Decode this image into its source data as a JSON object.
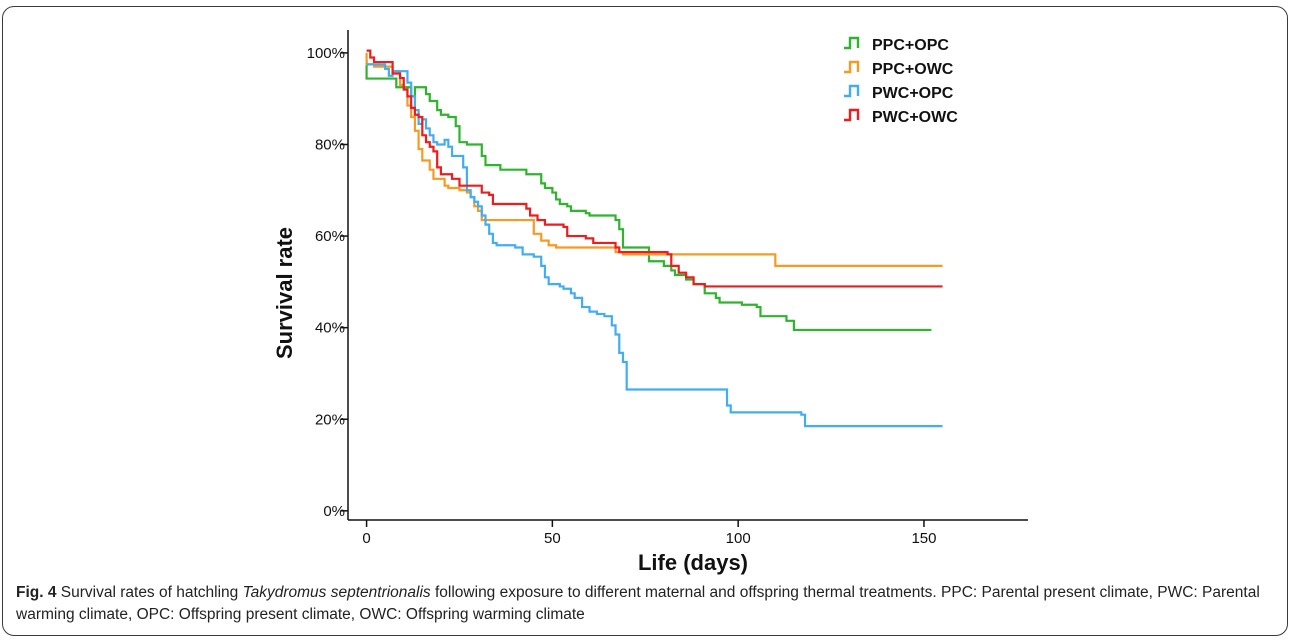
{
  "chart_data": {
    "type": "line",
    "step": true,
    "xlabel": "Life (days)",
    "ylabel": "Survival rate",
    "xlim": [
      -5,
      178
    ],
    "ylim": [
      -0.02,
      1.05
    ],
    "x_ticks": [
      0,
      50,
      100,
      150
    ],
    "x_tick_labels": [
      "0",
      "50",
      "100",
      "150"
    ],
    "y_ticks": [
      0,
      0.2,
      0.4,
      0.6,
      0.8,
      1.0
    ],
    "y_tick_labels": [
      "0%",
      "20%",
      "40%",
      "60%",
      "80%",
      "100%"
    ],
    "grid": false,
    "legend_position": "top-right",
    "series": [
      {
        "name": "PPC+OPC",
        "color": "#2db52d",
        "points": [
          [
            0,
            0.985
          ],
          [
            0,
            0.944
          ],
          [
            6,
            0.944
          ],
          [
            8,
            0.925
          ],
          [
            11,
            0.925
          ],
          [
            12,
            0.905
          ],
          [
            13,
            0.925
          ],
          [
            15,
            0.925
          ],
          [
            16,
            0.91
          ],
          [
            17,
            0.895
          ],
          [
            18,
            0.895
          ],
          [
            19,
            0.875
          ],
          [
            20,
            0.865
          ],
          [
            22,
            0.86
          ],
          [
            24,
            0.84
          ],
          [
            25,
            0.805
          ],
          [
            27,
            0.8
          ],
          [
            30,
            0.8
          ],
          [
            31,
            0.775
          ],
          [
            32,
            0.755
          ],
          [
            35,
            0.755
          ],
          [
            36,
            0.745
          ],
          [
            42,
            0.745
          ],
          [
            43,
            0.735
          ],
          [
            46,
            0.735
          ],
          [
            47,
            0.715
          ],
          [
            48,
            0.705
          ],
          [
            50,
            0.695
          ],
          [
            51,
            0.68
          ],
          [
            52,
            0.67
          ],
          [
            54,
            0.665
          ],
          [
            55,
            0.655
          ],
          [
            59,
            0.65
          ],
          [
            60,
            0.645
          ],
          [
            66,
            0.645
          ],
          [
            67,
            0.635
          ],
          [
            68,
            0.615
          ],
          [
            69,
            0.575
          ],
          [
            75,
            0.575
          ],
          [
            76,
            0.545
          ],
          [
            80,
            0.535
          ],
          [
            82,
            0.525
          ],
          [
            83,
            0.515
          ],
          [
            86,
            0.505
          ],
          [
            88,
            0.495
          ],
          [
            91,
            0.475
          ],
          [
            94,
            0.465
          ],
          [
            95,
            0.455
          ],
          [
            101,
            0.45
          ],
          [
            105,
            0.445
          ],
          [
            106,
            0.425
          ],
          [
            113,
            0.415
          ],
          [
            115,
            0.395
          ],
          [
            152,
            0.395
          ]
        ]
      },
      {
        "name": "PPC+OWC",
        "color": "#f59a23",
        "points": [
          [
            0,
            1.0
          ],
          [
            0,
            0.975
          ],
          [
            2,
            0.97
          ],
          [
            6,
            0.97
          ],
          [
            7,
            0.96
          ],
          [
            9,
            0.93
          ],
          [
            10,
            0.92
          ],
          [
            11,
            0.885
          ],
          [
            12,
            0.86
          ],
          [
            13,
            0.83
          ],
          [
            14,
            0.79
          ],
          [
            15,
            0.765
          ],
          [
            17,
            0.745
          ],
          [
            18,
            0.725
          ],
          [
            20,
            0.725
          ],
          [
            21,
            0.71
          ],
          [
            22,
            0.705
          ],
          [
            25,
            0.7
          ],
          [
            27,
            0.695
          ],
          [
            28,
            0.685
          ],
          [
            29,
            0.665
          ],
          [
            30,
            0.655
          ],
          [
            31,
            0.635
          ],
          [
            44,
            0.635
          ],
          [
            45,
            0.605
          ],
          [
            47,
            0.59
          ],
          [
            49,
            0.58
          ],
          [
            51,
            0.575
          ],
          [
            66,
            0.575
          ],
          [
            67,
            0.565
          ],
          [
            69,
            0.56
          ],
          [
            109,
            0.56
          ],
          [
            110,
            0.535
          ],
          [
            155,
            0.535
          ]
        ]
      },
      {
        "name": "PWC+OPC",
        "color": "#40aef0",
        "points": [
          [
            0,
            0.975
          ],
          [
            5,
            0.965
          ],
          [
            6,
            0.95
          ],
          [
            7,
            0.96
          ],
          [
            10,
            0.96
          ],
          [
            11,
            0.935
          ],
          [
            12,
            0.905
          ],
          [
            13,
            0.875
          ],
          [
            14,
            0.845
          ],
          [
            15,
            0.855
          ],
          [
            16,
            0.835
          ],
          [
            17,
            0.82
          ],
          [
            18,
            0.805
          ],
          [
            19,
            0.8
          ],
          [
            20,
            0.8
          ],
          [
            21,
            0.81
          ],
          [
            22,
            0.795
          ],
          [
            23,
            0.775
          ],
          [
            26,
            0.75
          ],
          [
            27,
            0.7
          ],
          [
            28,
            0.685
          ],
          [
            29,
            0.675
          ],
          [
            30,
            0.665
          ],
          [
            31,
            0.645
          ],
          [
            32,
            0.625
          ],
          [
            33,
            0.605
          ],
          [
            34,
            0.585
          ],
          [
            35,
            0.58
          ],
          [
            37,
            0.58
          ],
          [
            40,
            0.575
          ],
          [
            42,
            0.56
          ],
          [
            45,
            0.555
          ],
          [
            46,
            0.555
          ],
          [
            47,
            0.535
          ],
          [
            48,
            0.51
          ],
          [
            49,
            0.495
          ],
          [
            52,
            0.49
          ],
          [
            53,
            0.485
          ],
          [
            55,
            0.475
          ],
          [
            56,
            0.465
          ],
          [
            58,
            0.445
          ],
          [
            60,
            0.435
          ],
          [
            62,
            0.43
          ],
          [
            64,
            0.425
          ],
          [
            66,
            0.405
          ],
          [
            67,
            0.385
          ],
          [
            68,
            0.345
          ],
          [
            69,
            0.325
          ],
          [
            70,
            0.265
          ],
          [
            96,
            0.265
          ],
          [
            97,
            0.23
          ],
          [
            98,
            0.215
          ],
          [
            108,
            0.215
          ],
          [
            117,
            0.21
          ],
          [
            118,
            0.185
          ],
          [
            155,
            0.185
          ]
        ]
      },
      {
        "name": "PWC+OWC",
        "color": "#ee1c1c",
        "points": [
          [
            0,
            1.005
          ],
          [
            1,
            0.99
          ],
          [
            2,
            0.98
          ],
          [
            6,
            0.98
          ],
          [
            7,
            0.955
          ],
          [
            9,
            0.945
          ],
          [
            10,
            0.92
          ],
          [
            11,
            0.905
          ],
          [
            12,
            0.88
          ],
          [
            13,
            0.865
          ],
          [
            14,
            0.86
          ],
          [
            15,
            0.82
          ],
          [
            16,
            0.805
          ],
          [
            17,
            0.795
          ],
          [
            18,
            0.785
          ],
          [
            19,
            0.75
          ],
          [
            20,
            0.735
          ],
          [
            22,
            0.735
          ],
          [
            23,
            0.725
          ],
          [
            25,
            0.71
          ],
          [
            30,
            0.71
          ],
          [
            31,
            0.695
          ],
          [
            33,
            0.69
          ],
          [
            34,
            0.67
          ],
          [
            37,
            0.67
          ],
          [
            43,
            0.66
          ],
          [
            44,
            0.645
          ],
          [
            46,
            0.635
          ],
          [
            48,
            0.625
          ],
          [
            53,
            0.62
          ],
          [
            54,
            0.6
          ],
          [
            59,
            0.595
          ],
          [
            61,
            0.585
          ],
          [
            67,
            0.575
          ],
          [
            68,
            0.565
          ],
          [
            81,
            0.56
          ],
          [
            82,
            0.535
          ],
          [
            84,
            0.52
          ],
          [
            86,
            0.51
          ],
          [
            88,
            0.495
          ],
          [
            91,
            0.49
          ],
          [
            155,
            0.49
          ]
        ]
      }
    ]
  },
  "caption": {
    "label": "Fig. 4",
    "text_before_species": " Survival rates of hatchling ",
    "species": "Takydromus septentrionalis",
    "text_after_species": " following exposure to different maternal and offspring thermal treatments. PPC: Parental present climate, PWC: Parental warming climate, OPC: Offspring present climate, OWC: Offspring warming climate"
  }
}
